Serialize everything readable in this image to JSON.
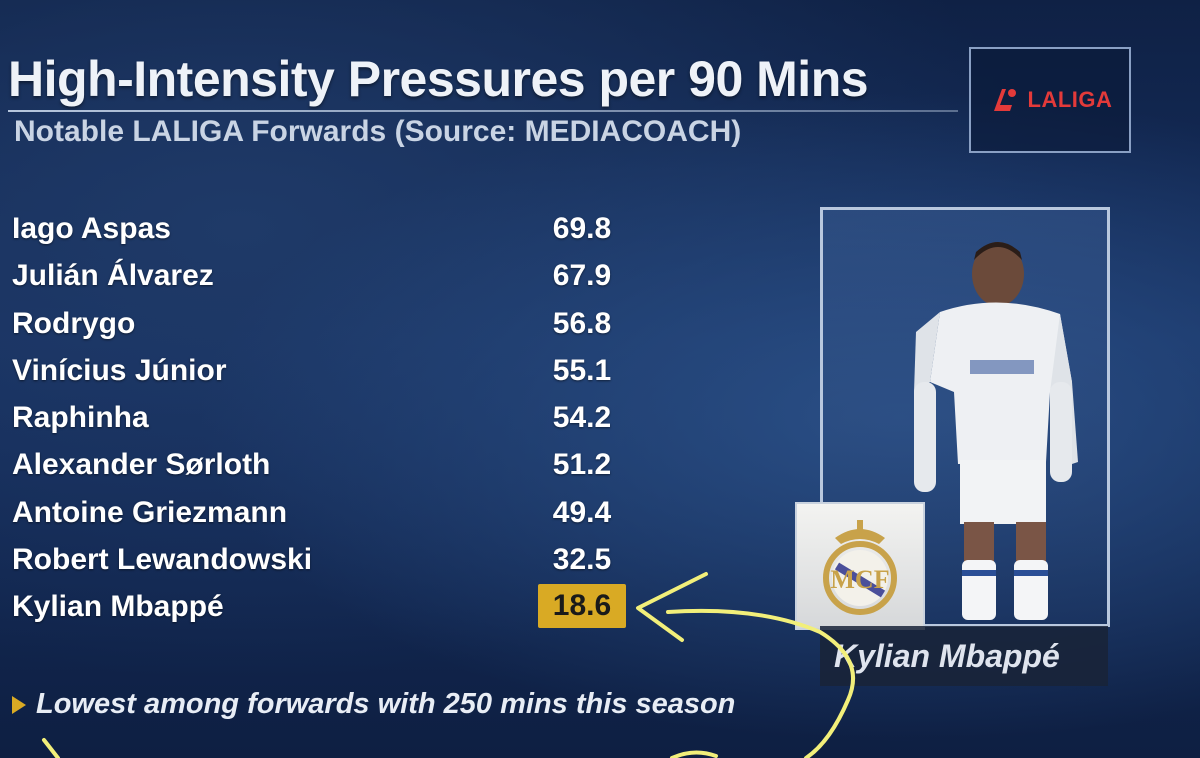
{
  "header": {
    "title": "High-Intensity Pressures per 90 Mins",
    "subtitle": "Notable LALIGA Forwards (Source: MEDIACOACH)",
    "logo_text": "LALIGA"
  },
  "chart_data": {
    "type": "table",
    "title": "High-Intensity Pressures per 90 Mins",
    "subtitle": "Notable LALIGA Forwards (Source: MEDIACOACH)",
    "categories": [
      "Iago Aspas",
      "Julián Álvarez",
      "Rodrygo",
      "Vinícius Júnior",
      "Raphinha",
      "Alexander Sørloth",
      "Antoine Griezmann",
      "Robert Lewandowski",
      "Kylian Mbappé"
    ],
    "values": [
      "69.8",
      "67.9",
      "56.8",
      "55.1",
      "54.2",
      "51.2",
      "49.4",
      "32.5",
      "18.6"
    ],
    "highlight_index": 8,
    "highlight_color": "#d9aa24"
  },
  "rows": [
    {
      "name": "Iago Aspas",
      "value": "69.8"
    },
    {
      "name": "Julián Álvarez",
      "value": "67.9"
    },
    {
      "name": "Rodrygo",
      "value": "56.8"
    },
    {
      "name": "Vinícius Júnior",
      "value": "55.1"
    },
    {
      "name": "Raphinha",
      "value": "54.2"
    },
    {
      "name": "Alexander Sørloth",
      "value": "51.2"
    },
    {
      "name": "Antoine Griezmann",
      "value": "49.4"
    },
    {
      "name": "Robert Lewandowski",
      "value": "32.5"
    },
    {
      "name": "Kylian Mbappé",
      "value": "18.6"
    }
  ],
  "player_card": {
    "name": "Kylian Mbappé"
  },
  "note": {
    "text": "Lowest among forwards with 250 mins this season"
  },
  "colors": {
    "highlight": "#d9aa24",
    "annotation": "#f2ef7a",
    "logo_red": "#e33a3a"
  },
  "icons": [
    "laliga-logo-icon",
    "real-madrid-crest-icon",
    "triangle-bullet-icon"
  ]
}
